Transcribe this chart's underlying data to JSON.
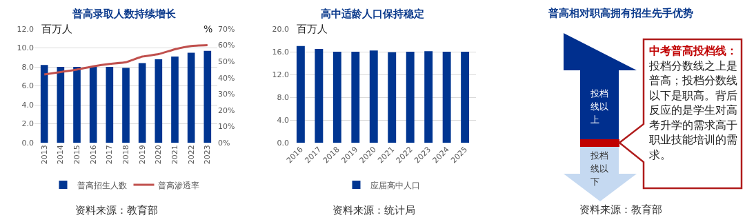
{
  "chart_data": [
    {
      "type": "bar",
      "title": "普高录取人数持续增长",
      "ylabel": "百万人",
      "y2label": "%",
      "categories": [
        "2013",
        "2014",
        "2015",
        "2016",
        "2017",
        "2018",
        "2019",
        "2020",
        "2021",
        "2022",
        "2023"
      ],
      "series": [
        {
          "name": "普高招生人数",
          "type": "bar",
          "color": "#003591",
          "values": [
            8.2,
            8.0,
            8.0,
            8.0,
            8.0,
            7.9,
            8.4,
            8.8,
            9.1,
            9.5,
            9.7
          ]
        },
        {
          "name": "普高渗透率",
          "type": "line",
          "axis": "y2",
          "color": "#c0504d",
          "values": [
            42,
            43.5,
            45,
            47,
            48.5,
            49.5,
            53,
            54.5,
            57.5,
            59.5,
            60
          ]
        }
      ],
      "ylim": [
        0,
        12
      ],
      "yticks": [
        {
          "value": 0,
          "label": "0.0"
        },
        {
          "value": 2,
          "label": "2.0"
        },
        {
          "value": 4,
          "label": "4.0"
        },
        {
          "value": 6,
          "label": "6.0"
        },
        {
          "value": 8,
          "label": "8.0"
        },
        {
          "value": 10,
          "label": "10.0"
        },
        {
          "value": 12,
          "label": "12.0"
        }
      ],
      "y2lim": [
        0,
        70
      ],
      "y2ticks": [
        {
          "value": 0,
          "label": "0%"
        },
        {
          "value": 10,
          "label": "10%"
        },
        {
          "value": 20,
          "label": "20%"
        },
        {
          "value": 30,
          "label": "30%"
        },
        {
          "value": 40,
          "label": "40%"
        },
        {
          "value": 50,
          "label": "50%"
        },
        {
          "value": 60,
          "label": "60%"
        },
        {
          "value": 70,
          "label": "70%"
        }
      ],
      "grid": "y",
      "legend": "bottom",
      "annotations": [
        "资料来源：教育部"
      ]
    },
    {
      "type": "bar",
      "title": "高中适龄人口保持稳定",
      "ylabel": "百万人",
      "categories": [
        "2016",
        "2017",
        "2018",
        "2019",
        "2020",
        "2021",
        "2022",
        "2023",
        "2024",
        "2025"
      ],
      "series": [
        {
          "name": "应届高中人口",
          "type": "bar",
          "color": "#003591",
          "values": [
            17.0,
            16.5,
            16.0,
            16.0,
            16.2,
            15.9,
            16.0,
            16.1,
            16.0,
            16.0
          ]
        }
      ],
      "ylim": [
        0,
        20
      ],
      "yticks": [
        {
          "value": 0,
          "label": "0.0"
        },
        {
          "value": 4,
          "label": "4.0"
        },
        {
          "value": 8,
          "label": "8.0"
        },
        {
          "value": 12,
          "label": "12.0"
        },
        {
          "value": 16,
          "label": "16.0"
        },
        {
          "value": 20,
          "label": "20.0"
        }
      ],
      "grid": "y",
      "legend": "bottom",
      "annotations": [
        "资料来源：统计局"
      ]
    },
    {
      "type": "other",
      "title": "普高相对职高拥有招生先手优势",
      "annotations": [
        "投档线以上",
        "投档线以下",
        "中考普高投档线：",
        "投档分数线之上是普高；投档分数线以下是职高。背后反应的是学生对高考升学的需求高于职业技能培训的需求。",
        "资料来源：教育部"
      ]
    }
  ]
}
